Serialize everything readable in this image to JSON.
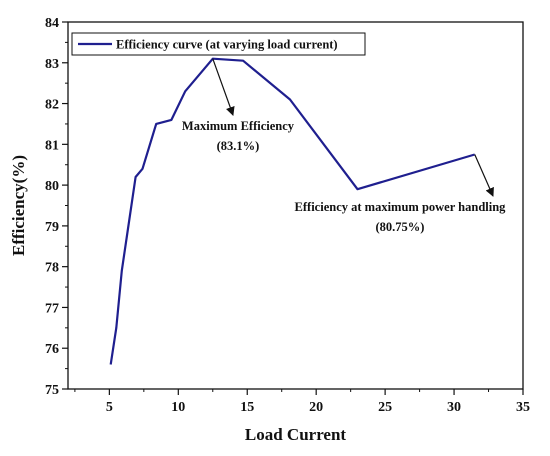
{
  "chart_data": {
    "type": "line",
    "xlabel": "Load Current",
    "ylabel": "Efficiency(%)",
    "xlim": [
      2,
      35
    ],
    "ylim": [
      75,
      84
    ],
    "xticks": [
      5,
      10,
      15,
      20,
      25,
      30,
      35
    ],
    "yticks": [
      75,
      76,
      77,
      78,
      79,
      80,
      81,
      82,
      83,
      84
    ],
    "grid": false,
    "legend_position": "top-left",
    "series": [
      {
        "name": "Efficiency curve (at varying load current)",
        "color": "#1f1f8f",
        "x": [
          5.1,
          5.5,
          5.9,
          6.9,
          7.4,
          8.4,
          9.5,
          10.5,
          12.5,
          14.7,
          18.1,
          23,
          31.5
        ],
        "y": [
          75.6,
          76.5,
          77.9,
          80.2,
          80.4,
          81.5,
          81.6,
          82.3,
          83.1,
          83.05,
          82.1,
          79.9,
          80.75
        ]
      }
    ],
    "annotations": [
      {
        "line1": "Maximum Efficiency",
        "line2": "(83.1%)",
        "target_x": 12.5,
        "target_y": 83.1
      },
      {
        "line1": "Efficiency at maximum power handling",
        "line2": "(80.75%)",
        "target_x": 31.5,
        "target_y": 80.75
      }
    ]
  }
}
